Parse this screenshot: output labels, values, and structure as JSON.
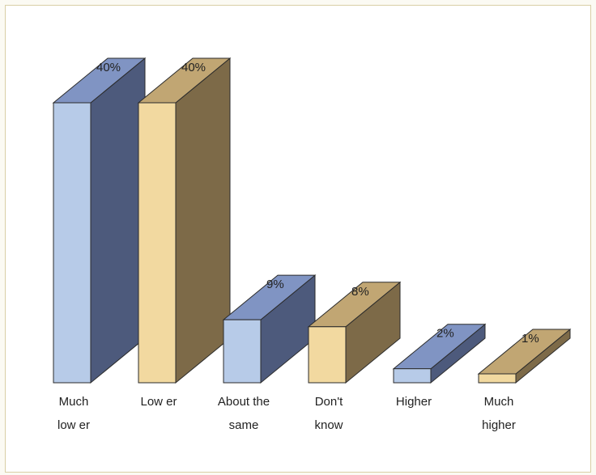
{
  "chart_data": {
    "type": "bar",
    "title": "",
    "xlabel": "",
    "ylabel": "",
    "ylim": [
      0,
      40
    ],
    "categories": [
      [
        "Much",
        "low er"
      ],
      [
        "Low er"
      ],
      [
        "About the",
        "same"
      ],
      [
        "Don't",
        "know"
      ],
      [
        "Higher"
      ],
      [
        "Much",
        "higher"
      ]
    ],
    "values": [
      40,
      40,
      9,
      8,
      2,
      1
    ],
    "value_labels": [
      "40%",
      "40%",
      "9%",
      "8%",
      "2%",
      "1%"
    ],
    "bar_style": "3d",
    "colors": {
      "blue_front": "#b7cbe8",
      "blue_side": "#4d5a7c",
      "blue_top": "#8094c3",
      "tan_front": "#f2d9a0",
      "tan_side": "#7d6a48",
      "tan_top": "#c1a673"
    },
    "color_pattern": [
      "blue",
      "tan",
      "blue",
      "tan",
      "blue",
      "tan"
    ]
  }
}
